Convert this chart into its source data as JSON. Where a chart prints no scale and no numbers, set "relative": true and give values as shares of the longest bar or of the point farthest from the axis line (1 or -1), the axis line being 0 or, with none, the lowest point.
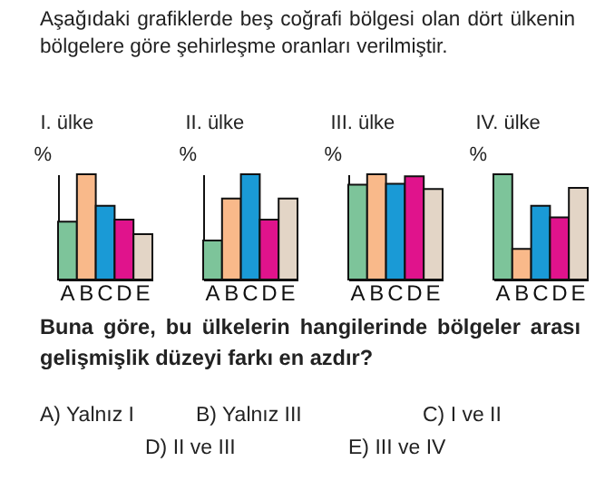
{
  "chart_data": [
    {
      "type": "other",
      "annotations": [
        "Aşağıdaki grafiklerde beş coğrafi bölgesi olan dört ülkenin bölgelere göre şehirleşme oranları verilmiştir."
      ]
    },
    {
      "type": "bar",
      "title": "I. ülke",
      "ylabel": "%",
      "relative": true,
      "categories": [
        "A",
        "B",
        "C",
        "D",
        "E"
      ],
      "values": [
        0.55,
        1,
        0.7,
        0.57,
        0.43
      ],
      "colors": [
        "#7dc49a",
        "#f9b98a",
        "#1a9ad6",
        "#e0138c",
        "#e3d5c6"
      ]
    },
    {
      "type": "bar",
      "title": "II. ülke",
      "ylabel": "%",
      "relative": true,
      "categories": [
        "A",
        "B",
        "C",
        "D",
        "E"
      ],
      "values": [
        0.37,
        0.77,
        1,
        0.57,
        0.77
      ],
      "colors": [
        "#7dc49a",
        "#f9b98a",
        "#1a9ad6",
        "#e0138c",
        "#e3d5c6"
      ]
    },
    {
      "type": "bar",
      "title": "III. ülke",
      "ylabel": "%",
      "relative": true,
      "categories": [
        "A",
        "B",
        "C",
        "D",
        "E"
      ],
      "values": [
        0.9,
        1,
        0.91,
        0.98,
        0.86
      ],
      "colors": [
        "#7dc49a",
        "#f9b98a",
        "#1a9ad6",
        "#e0138c",
        "#e3d5c6"
      ]
    },
    {
      "type": "bar",
      "title": "IV. ülke",
      "ylabel": "%",
      "relative": true,
      "categories": [
        "A",
        "B",
        "C",
        "D",
        "E"
      ],
      "values": [
        1,
        0.29,
        0.7,
        0.59,
        0.87
      ],
      "colors": [
        "#7dc49a",
        "#f9b98a",
        "#1a9ad6",
        "#e0138c",
        "#e3d5c6"
      ]
    },
    {
      "type": "other",
      "annotations": [
        "Buna göre, bu ülkelerin hangilerinde bölgeler arası gelişmişlik düzeyi farkı en azdır?",
        "A) Yalnız I",
        "B) Yalnız III",
        "C) I ve II",
        "D) II ve III",
        "E) III ve IV"
      ]
    }
  ]
}
